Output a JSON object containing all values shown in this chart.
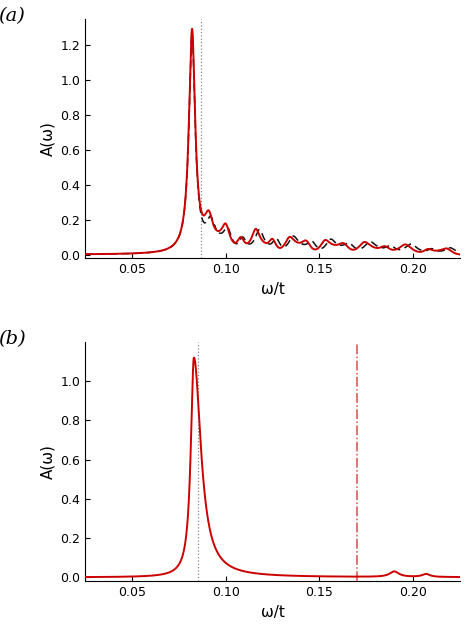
{
  "panel_a": {
    "xmin": 0.025,
    "xmax": 0.225,
    "ymin": -0.02,
    "ymax": 1.35,
    "yticks": [
      0.0,
      0.2,
      0.4,
      0.6,
      0.8,
      1.0,
      1.2
    ],
    "xticks": [
      0.05,
      0.1,
      0.15,
      0.2
    ],
    "xlabel": "ω/t",
    "ylabel": "A(ω)",
    "label": "(a)",
    "vline_x": 0.087,
    "red_color": "#cc0000",
    "black_color": "#111111"
  },
  "panel_b": {
    "xmin": 0.025,
    "xmax": 0.225,
    "ymin": -0.02,
    "ymax": 1.2,
    "yticks": [
      0.0,
      0.2,
      0.4,
      0.6,
      0.8,
      1.0
    ],
    "xticks": [
      0.05,
      0.1,
      0.15,
      0.2
    ],
    "xlabel": "ω/t",
    "ylabel": "A(ω)",
    "label": "(b)",
    "vline_black_x": 0.085,
    "vline_red_x": 0.17,
    "red_color": "#cc0000"
  },
  "fig_width": 4.74,
  "fig_height": 6.25
}
